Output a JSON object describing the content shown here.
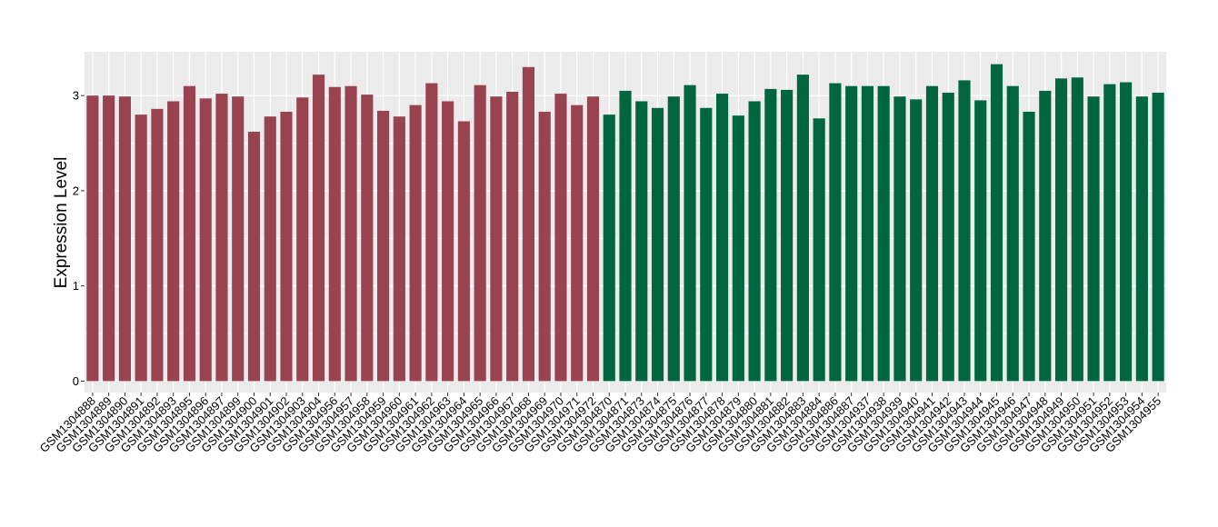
{
  "chart_data": {
    "type": "bar",
    "title": "",
    "xlabel": "",
    "ylabel": "Expression Level",
    "ylim": [
      -0.12,
      3.46
    ],
    "yticks": [
      0,
      1,
      2,
      3
    ],
    "grid": true,
    "legend": "none",
    "colors": {
      "group1": "#98434F",
      "group2": "#006640",
      "panel": "#EBEBEB",
      "grid": "#FFFFFF"
    },
    "categories": [
      "GSM1304888",
      "GSM1304889",
      "GSM1304890",
      "GSM1304891",
      "GSM1304892",
      "GSM1304893",
      "GSM1304895",
      "GSM1304896",
      "GSM1304897",
      "GSM1304899",
      "GSM1304900",
      "GSM1304901",
      "GSM1304902",
      "GSM1304903",
      "GSM1304904",
      "GSM1304956",
      "GSM1304957",
      "GSM1304958",
      "GSM1304959",
      "GSM1304960",
      "GSM1304961",
      "GSM1304962",
      "GSM1304963",
      "GSM1304964",
      "GSM1304965",
      "GSM1304966",
      "GSM1304967",
      "GSM1304968",
      "GSM1304969",
      "GSM1304970",
      "GSM1304971",
      "GSM1304972",
      "GSM1304870",
      "GSM1304871",
      "GSM1304873",
      "GSM1304874",
      "GSM1304875",
      "GSM1304876",
      "GSM1304877",
      "GSM1304878",
      "GSM1304879",
      "GSM1304880",
      "GSM1304881",
      "GSM1304882",
      "GSM1304883",
      "GSM1304884",
      "GSM1304886",
      "GSM1304887",
      "GSM1304937",
      "GSM1304938",
      "GSM1304939",
      "GSM1304940",
      "GSM1304941",
      "GSM1304942",
      "GSM1304943",
      "GSM1304944",
      "GSM1304945",
      "GSM1304946",
      "GSM1304947",
      "GSM1304948",
      "GSM1304949",
      "GSM1304950",
      "GSM1304951",
      "GSM1304952",
      "GSM1304953",
      "GSM1304954",
      "GSM1304955"
    ],
    "values": [
      3.0,
      3.0,
      2.99,
      2.8,
      2.86,
      2.94,
      3.1,
      2.97,
      3.02,
      2.99,
      2.62,
      2.78,
      2.83,
      2.98,
      3.22,
      3.09,
      3.1,
      3.01,
      2.84,
      2.78,
      2.9,
      3.13,
      2.94,
      2.73,
      3.11,
      2.99,
      3.04,
      3.3,
      2.83,
      3.02,
      2.9,
      2.99,
      2.8,
      3.05,
      2.94,
      2.87,
      2.99,
      3.11,
      2.87,
      3.02,
      2.79,
      2.94,
      3.07,
      3.06,
      3.22,
      2.76,
      3.13,
      3.1,
      3.1,
      3.1,
      2.99,
      2.96,
      3.1,
      3.03,
      3.16,
      2.95,
      3.33,
      3.1,
      2.83,
      3.05,
      3.18,
      3.19,
      2.99,
      3.12,
      3.14,
      2.99,
      3.03
    ],
    "groups": [
      1,
      1,
      1,
      1,
      1,
      1,
      1,
      1,
      1,
      1,
      1,
      1,
      1,
      1,
      1,
      1,
      1,
      1,
      1,
      1,
      1,
      1,
      1,
      1,
      1,
      1,
      1,
      1,
      1,
      1,
      1,
      1,
      2,
      2,
      2,
      2,
      2,
      2,
      2,
      2,
      2,
      2,
      2,
      2,
      2,
      2,
      2,
      2,
      2,
      2,
      2,
      2,
      2,
      2,
      2,
      2,
      2,
      2,
      2,
      2,
      2,
      2,
      2,
      2,
      2,
      2,
      2
    ]
  }
}
